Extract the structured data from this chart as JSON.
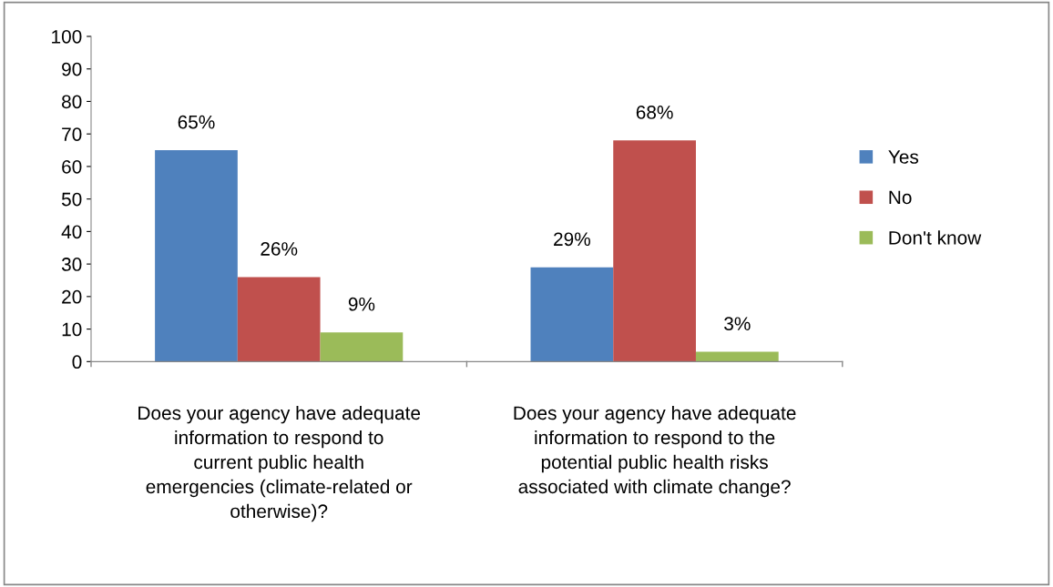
{
  "chart_data": {
    "type": "bar",
    "categories": [
      "Does your agency have adequate\ninformation to respond to\ncurrent public health\nemergencies (climate-related or\notherwise)?",
      "Does your agency have adequate\ninformation to respond to the\npotential public health risks\nassociated with climate change?"
    ],
    "series": [
      {
        "name": "Yes",
        "color": "#4f81bd",
        "values": [
          65,
          29
        ],
        "value_labels": [
          "65%",
          "29%"
        ]
      },
      {
        "name": "No",
        "color": "#c0504d",
        "values": [
          26,
          68
        ],
        "value_labels": [
          "26%",
          "68%"
        ]
      },
      {
        "name": "Don't know",
        "color": "#9bbb59",
        "values": [
          9,
          3
        ],
        "value_labels": [
          "9%",
          "3%"
        ]
      }
    ],
    "ylim": [
      0,
      100
    ],
    "yticks": [
      0,
      10,
      20,
      30,
      40,
      50,
      60,
      70,
      80,
      90,
      100
    ],
    "grid": false,
    "legend": "right"
  }
}
